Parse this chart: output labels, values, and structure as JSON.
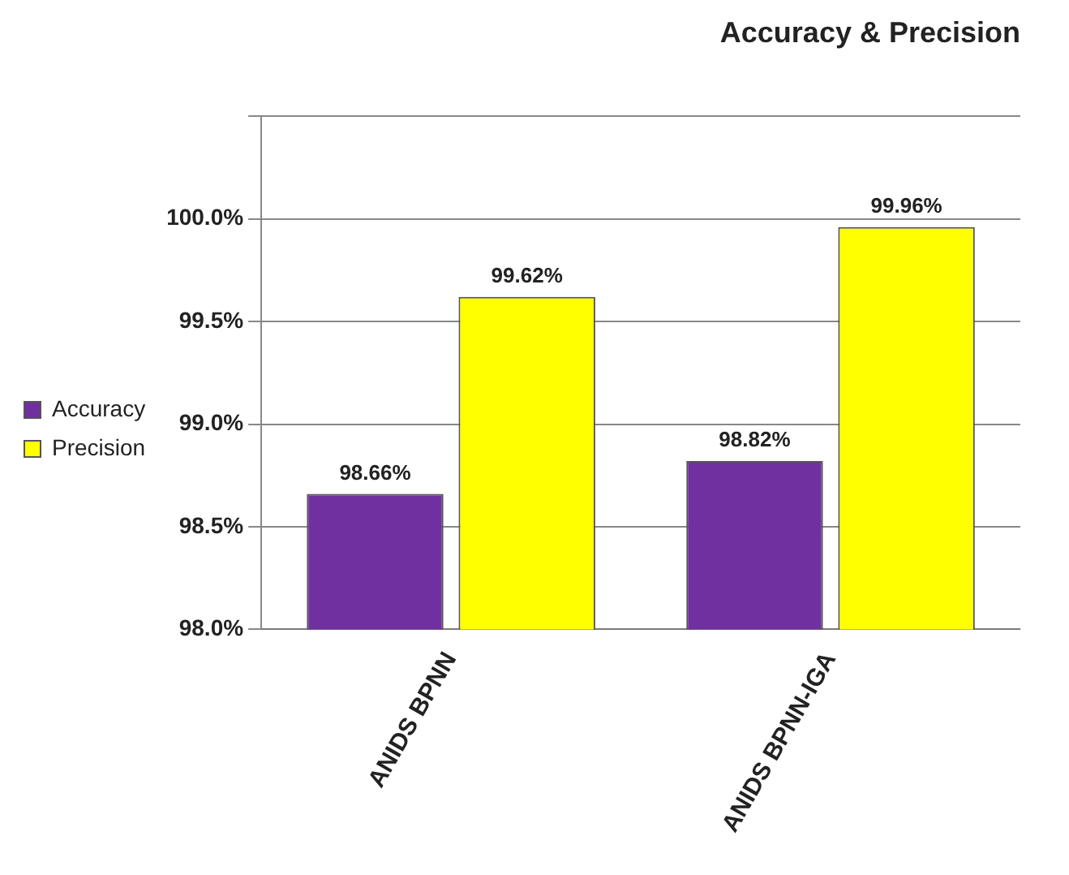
{
  "chart_data": {
    "type": "bar",
    "title": "Accuracy & Precision",
    "categories": [
      "ANIDS BPNN",
      "ANIDS BPNN-IGA"
    ],
    "series": [
      {
        "name": "Accuracy",
        "color": "#7030a0",
        "values": [
          98.66,
          98.82
        ],
        "value_labels": [
          "98.66%",
          "98.82%"
        ]
      },
      {
        "name": "Precision",
        "color": "#ffff00",
        "values": [
          99.62,
          99.96
        ],
        "value_labels": [
          "99.62%",
          "99.96%"
        ]
      }
    ],
    "ylim": [
      98,
      100.5
    ],
    "yticks": [
      {
        "value": 98,
        "label": "98.0%"
      },
      {
        "value": 98.5,
        "label": "98.5%"
      },
      {
        "value": 99,
        "label": "99.0%"
      },
      {
        "value": 99.5,
        "label": "99.5%"
      },
      {
        "value": 100,
        "label": "100.0%"
      },
      {
        "value": 100.5,
        "label": null
      }
    ],
    "grid": "y",
    "legend": "left"
  }
}
